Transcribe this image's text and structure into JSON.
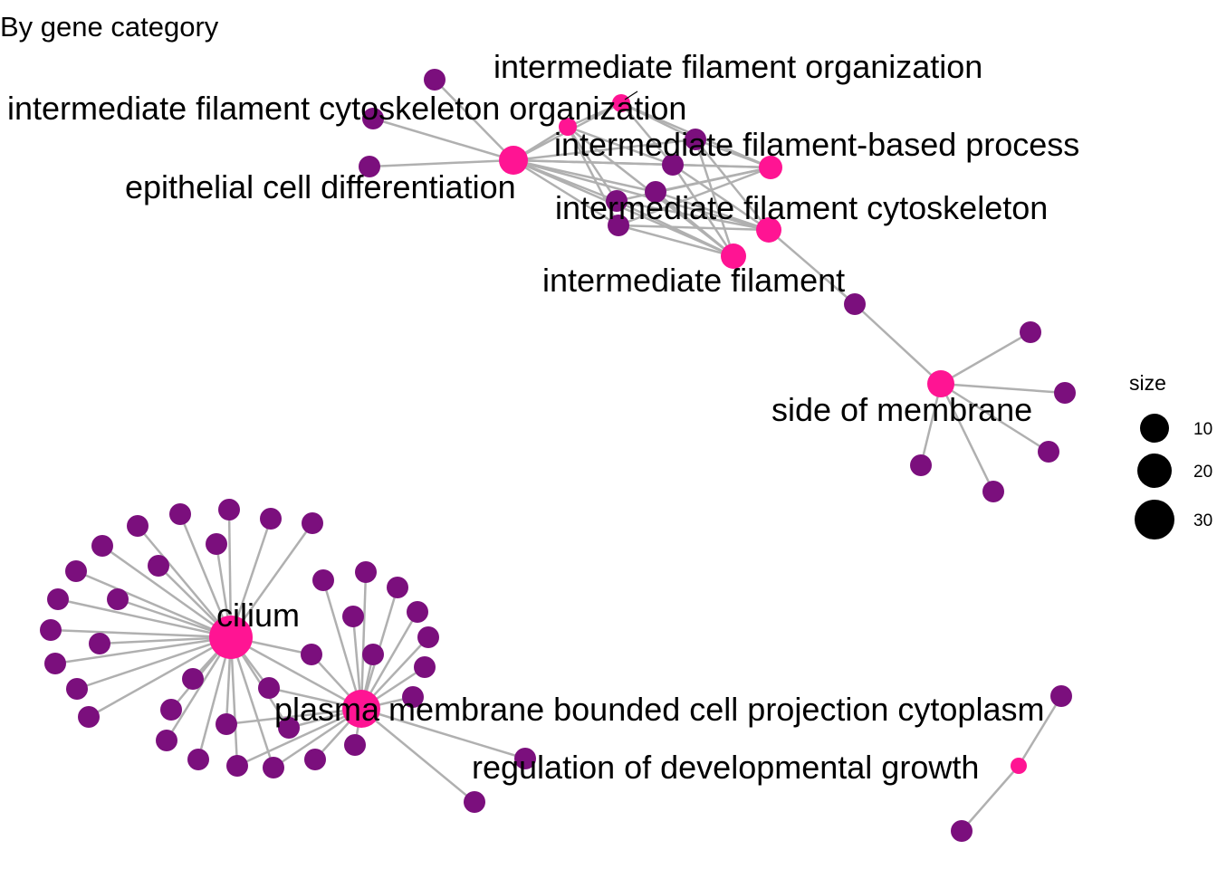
{
  "title": "By gene category",
  "colors": {
    "category": "#ff1493",
    "gene": "#7b0f7d",
    "edge": "#b0b0b0"
  },
  "categories": [
    {
      "id": "if_org",
      "label": "intermediate filament organization"
    },
    {
      "id": "if_cyto_org",
      "label": "intermediate filament cytoskeleton organization"
    },
    {
      "id": "if_based",
      "label": "intermediate filament-based process"
    },
    {
      "id": "epi",
      "label": "epithelial cell differentiation"
    },
    {
      "id": "if_cyto",
      "label": "intermediate filament cytoskeleton"
    },
    {
      "id": "if_fil",
      "label": "intermediate filament"
    },
    {
      "id": "side",
      "label": "side of membrane"
    },
    {
      "id": "cilium",
      "label": "cilium"
    },
    {
      "id": "pmbcpc",
      "label": "plasma membrane bounded cell projection cytoplasm"
    },
    {
      "id": "rdg",
      "label": "regulation of developmental growth"
    }
  ],
  "legend": {
    "title": "size",
    "items": [
      {
        "label": "10",
        "value": 10
      },
      {
        "label": "20",
        "value": 20
      },
      {
        "label": "30",
        "value": 30
      }
    ]
  }
}
